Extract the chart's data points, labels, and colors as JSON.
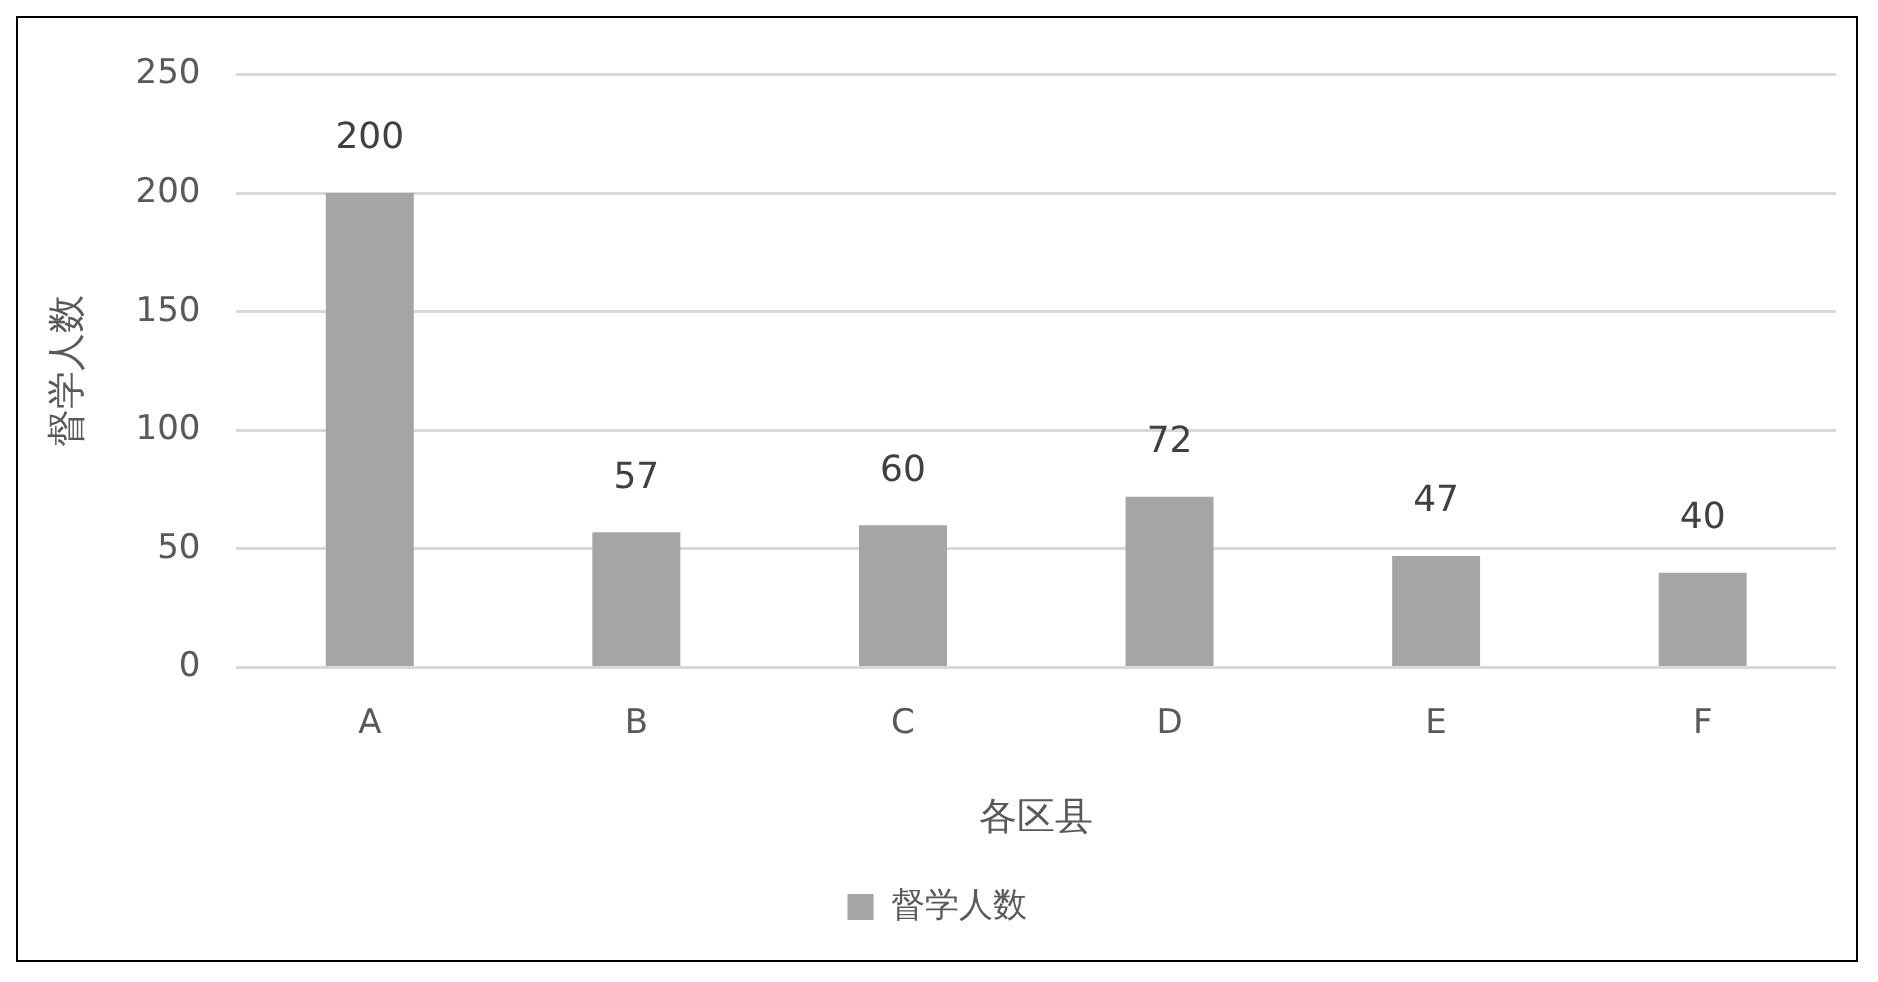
{
  "chart_data": {
    "type": "bar",
    "xlabel": "各区县",
    "ylabel": "督学人数",
    "categories": [
      "A",
      "B",
      "C",
      "D",
      "E",
      "F"
    ],
    "series": [
      {
        "name": "督学人数",
        "color": "#a5a5a5",
        "values": [
          200,
          57,
          60,
          72,
          47,
          40
        ]
      }
    ],
    "ylim": [
      0,
      250
    ],
    "yticks": [
      0,
      50,
      100,
      150,
      200,
      250
    ],
    "grid": "y",
    "legend": "bottom",
    "data_labels": true
  }
}
